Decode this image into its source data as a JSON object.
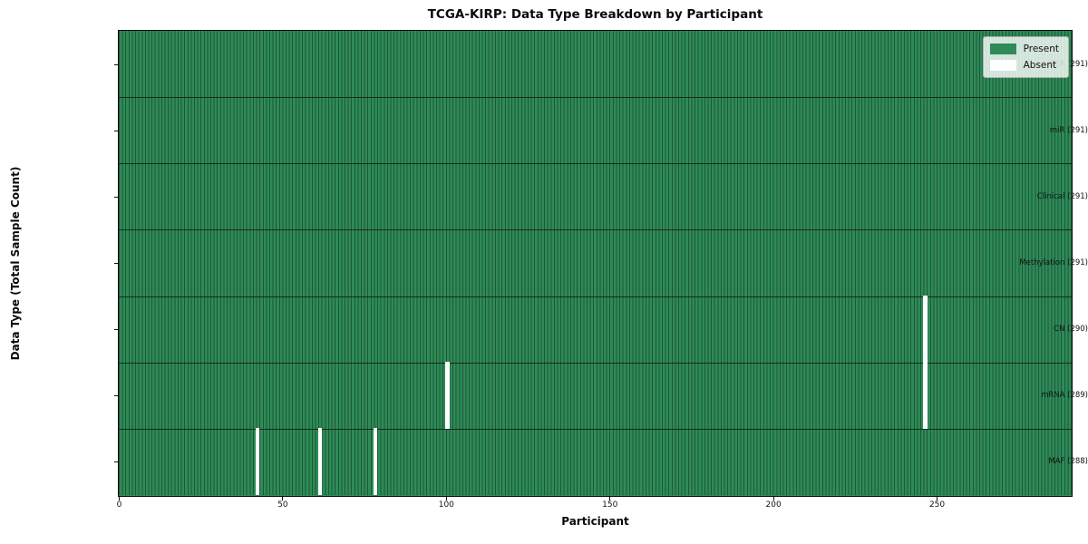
{
  "title": "TCGA-KIRP: Data Type Breakdown by Participant",
  "xlabel": "Participant",
  "ylabel": "Data Type (Total Sample Count)",
  "legend": {
    "present_label": "Present",
    "absent_label": "Absent"
  },
  "colors": {
    "present": "#2e8b57",
    "absent": "#ffffff",
    "bar_edge_line": "#1d5737",
    "row_divider": "#152b1d",
    "plot_border": "#0c0c0c",
    "axis_text": "#111111",
    "legend_border": "#b0b0b0"
  },
  "chart_data": {
    "type": "heatmap",
    "title": "TCGA-KIRP: Data Type Breakdown by Participant",
    "xlabel": "Participant",
    "ylabel": "Data Type (Total Sample Count)",
    "x_range": [
      0,
      291
    ],
    "x_ticks": [
      0,
      50,
      100,
      150,
      200,
      250
    ],
    "total_participants": 291,
    "legend": [
      "Present",
      "Absent"
    ],
    "legend_position": "upper right",
    "grid": false,
    "rows": [
      {
        "data_type": "BCR",
        "label": "BCR (291)",
        "sample_count": 291,
        "absent_participants": []
      },
      {
        "data_type": "miR",
        "label": "miR (291)",
        "sample_count": 291,
        "absent_participants": []
      },
      {
        "data_type": "Clinical",
        "label": "Clinical (291)",
        "sample_count": 291,
        "absent_participants": []
      },
      {
        "data_type": "Methylation",
        "label": "Methylation (291)",
        "sample_count": 291,
        "absent_participants": []
      },
      {
        "data_type": "CN",
        "label": "CN (290)",
        "sample_count": 290,
        "absent_participants": [
          246
        ]
      },
      {
        "data_type": "mRNA",
        "label": "mRNA (289)",
        "sample_count": 289,
        "absent_participants": [
          100,
          246
        ]
      },
      {
        "data_type": "MAF",
        "label": "MAF (288)",
        "sample_count": 288,
        "absent_participants": [
          42,
          61,
          78
        ]
      }
    ]
  }
}
